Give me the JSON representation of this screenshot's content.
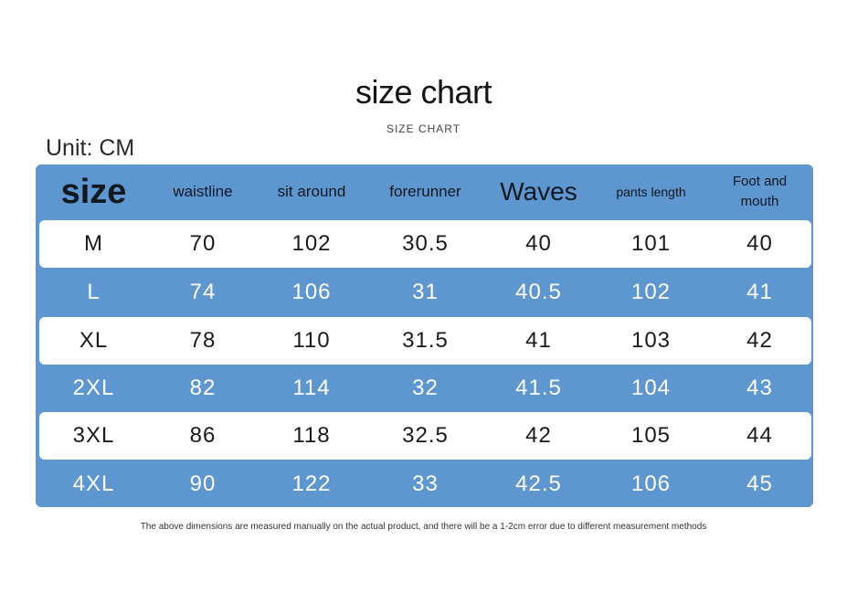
{
  "title": "size chart",
  "subtitle": "SIZE CHART",
  "unit": "Unit: CM",
  "table": {
    "headers": [
      "size",
      "waistline",
      "sit around",
      "forerunner",
      "Waves",
      "pants length",
      "Foot and mouth"
    ],
    "rows": [
      [
        "M",
        "70",
        "102",
        "30.5",
        "40",
        "101",
        "40"
      ],
      [
        "L",
        "74",
        "106",
        "31",
        "40.5",
        "102",
        "41"
      ],
      [
        "XL",
        "78",
        "110",
        "31.5",
        "41",
        "103",
        "42"
      ],
      [
        "2XL",
        "82",
        "114",
        "32",
        "41.5",
        "104",
        "43"
      ],
      [
        "3XL",
        "86",
        "118",
        "32.5",
        "42",
        "105",
        "44"
      ],
      [
        "4XL",
        "90",
        "122",
        "33",
        "42.5",
        "106",
        "45"
      ]
    ]
  },
  "note": "The above dimensions are measured manually on the actual product, and there will be a 1-2cm error due to different measurement methods",
  "colors": {
    "table_blue": "#5e96cf",
    "row_white": "#ffffff",
    "header_text": "#101820"
  }
}
